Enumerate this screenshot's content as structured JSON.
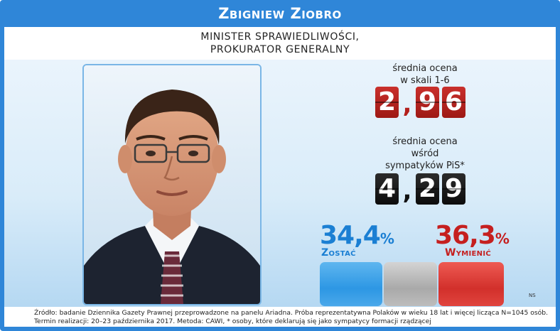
{
  "header": {
    "name": "Zbigniew Ziobro"
  },
  "subtitle": {
    "line1": "MINISTER SPRAWIEDLIWOŚCI,",
    "line2": "PROKURATOR GENERALNY"
  },
  "rating_all": {
    "label_line1": "średnia ocena",
    "label_line2": "w skali 1-6",
    "digits": [
      "2",
      "9",
      "6"
    ],
    "value": 2.96,
    "color": "#b3201c"
  },
  "rating_pis": {
    "label_line1": "średnia ocena",
    "label_line2": "wśród",
    "label_line3": "sympatyków PiS*",
    "digits": [
      "4",
      "2",
      "9"
    ],
    "value": 4.29,
    "color": "#111111"
  },
  "comma": ",",
  "stay": {
    "value": "34,4",
    "unit": "%",
    "label": "Zostać",
    "color": "#1b7fd3"
  },
  "replace": {
    "value": "36,3",
    "unit": "%",
    "label": "Wymienić",
    "color": "#c51f1f"
  },
  "bar_values": {
    "stay": 34.4,
    "undecided": 29.3,
    "replace": 36.3
  },
  "ns_label": "NS",
  "footer": {
    "line1": "Źródło: badanie Dziennika Gazety Prawnej przeprowadzone na panelu Ariadna. Próba reprezentatywna Polaków w wieku 18 lat i więcej licząca N=1045 osób.",
    "line2": "Termin realizacji: 20–23 października 2017. Metoda: CAWI, * osoby, które deklarują się jako sympatycy formacji rządzącej"
  },
  "colors": {
    "frame": "#2f86d8",
    "stay_bar": "#2d97e4",
    "undecided_bar": "#a9a9a9",
    "replace_bar": "#d2302b"
  }
}
